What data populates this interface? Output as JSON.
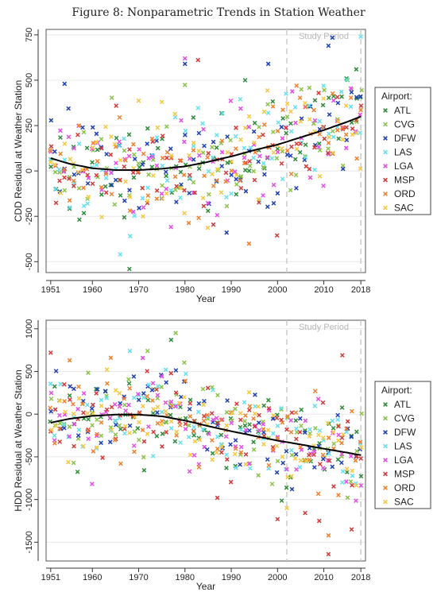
{
  "figure_title": "Figure 8: Nonparametric Trends in Station Weather",
  "colors": {
    "ATL": "#2e8b3a",
    "CVG": "#8bc34a",
    "DFW": "#1f3fb4",
    "LAS": "#66e0ee",
    "LGA": "#e64be6",
    "MSP": "#d23a3a",
    "ORD": "#f08030",
    "SAC": "#f5c842",
    "trend": "#000000",
    "study_line": "#c8c8c8",
    "grid": "#e8e8e8"
  },
  "chart_data": [
    {
      "type": "scatter",
      "title": "",
      "xlabel": "Year",
      "ylabel": "CDD Residual at Weather Station",
      "xticks": [
        1951,
        1960,
        1970,
        1980,
        1990,
        2000,
        2010,
        2018
      ],
      "yticks": [
        -500,
        -250,
        0,
        250,
        500,
        750
      ],
      "xlim": [
        1950,
        2019
      ],
      "ylim": [
        -560,
        780
      ],
      "study_period_start": 2002,
      "study_period_label": "Study Period",
      "legend_title": "Airport:",
      "legend": [
        "ATL",
        "CVG",
        "DFW",
        "LAS",
        "LGA",
        "MSP",
        "ORD",
        "SAC"
      ],
      "trend": {
        "x": [
          1951,
          1955,
          1960,
          1965,
          1970,
          1975,
          1980,
          1985,
          1990,
          1995,
          2000,
          2005,
          2010,
          2015,
          2018
        ],
        "y": [
          70,
          40,
          15,
          5,
          5,
          12,
          25,
          50,
          80,
          115,
          145,
          185,
          225,
          270,
          300
        ]
      },
      "noise_sd": 150,
      "notable_points": [
        {
          "airport": "DFW",
          "x": 2011,
          "y": 690
        },
        {
          "airport": "LAS",
          "x": 2018,
          "y": 740
        },
        {
          "airport": "LGA",
          "x": 1980,
          "y": 620
        },
        {
          "airport": "DFW",
          "x": 1980,
          "y": 590
        },
        {
          "airport": "ATL",
          "x": 1993,
          "y": 500
        },
        {
          "airport": "DFW",
          "x": 1998,
          "y": 590
        },
        {
          "airport": "LAS",
          "x": 1966,
          "y": -460
        },
        {
          "airport": "ATL",
          "x": 1968,
          "y": -540
        },
        {
          "airport": "DFW",
          "x": 1954,
          "y": 480
        },
        {
          "airport": "ATL",
          "x": 2017,
          "y": 560
        },
        {
          "airport": "SAC",
          "x": 1975,
          "y": 380
        },
        {
          "airport": "DFW",
          "x": 1989,
          "y": -340
        }
      ]
    },
    {
      "type": "scatter",
      "title": "",
      "xlabel": "Year",
      "ylabel": "HDD Residual at Weather Station",
      "xticks": [
        1951,
        1960,
        1970,
        1980,
        1990,
        2000,
        2010,
        2018
      ],
      "yticks": [
        -1500,
        -1000,
        -500,
        0,
        500,
        1000
      ],
      "xlim": [
        1950,
        2019
      ],
      "ylim": [
        -1720,
        1100
      ],
      "study_period_start": 2002,
      "study_period_label": "Study Period",
      "legend_title": "Airport:",
      "legend": [
        "ATL",
        "CVG",
        "DFW",
        "LAS",
        "LGA",
        "MSP",
        "ORD",
        "SAC"
      ],
      "trend": {
        "x": [
          1951,
          1955,
          1960,
          1965,
          1970,
          1975,
          1980,
          1985,
          1990,
          1995,
          2000,
          2005,
          2010,
          2015,
          2018
        ],
        "y": [
          -100,
          -55,
          -20,
          -5,
          -5,
          -25,
          -75,
          -140,
          -200,
          -255,
          -310,
          -355,
          -405,
          -450,
          -480
        ]
      },
      "noise_sd": 280,
      "notable_points": [
        {
          "airport": "CVG",
          "x": 1978,
          "y": 950
        },
        {
          "airport": "ATL",
          "x": 1977,
          "y": 870
        },
        {
          "airport": "MSP",
          "x": 1951,
          "y": 720
        },
        {
          "airport": "MSP",
          "x": 2014,
          "y": 690
        },
        {
          "airport": "MSP",
          "x": 2011,
          "y": -1640
        },
        {
          "airport": "ORD",
          "x": 2011,
          "y": -1420
        },
        {
          "airport": "MSP",
          "x": 2016,
          "y": -1350
        },
        {
          "airport": "MSP",
          "x": 2009,
          "y": -1250
        },
        {
          "airport": "MSP",
          "x": 2000,
          "y": -1230
        },
        {
          "airport": "MSP",
          "x": 1987,
          "y": -980
        },
        {
          "airport": "SAC",
          "x": 2002,
          "y": -1100
        },
        {
          "airport": "LAS",
          "x": 2014,
          "y": -800
        }
      ]
    }
  ]
}
